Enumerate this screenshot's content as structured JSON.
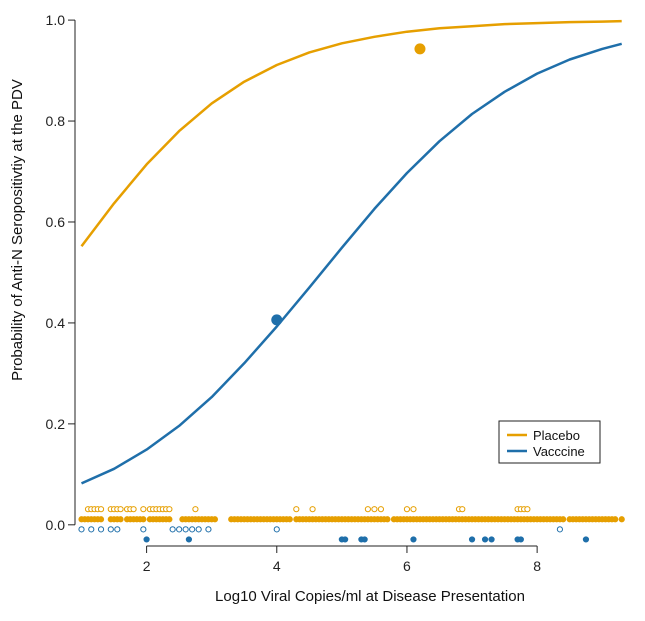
{
  "chart_data": {
    "type": "line",
    "title": "",
    "xlabel": "Log10 Viral Copies/ml at Disease Presentation",
    "ylabel": "Probability of Anti-N Seropositivtiy at the PDV",
    "xlim": [
      0.9,
      9.35
    ],
    "ylim": [
      -0.04,
      1.02
    ],
    "x_ticks": [
      2,
      4,
      6,
      8
    ],
    "y_ticks": [
      0.0,
      0.2,
      0.4,
      0.6,
      0.8,
      1.0
    ],
    "x_tick_labels": [
      "2",
      "4",
      "6",
      "8"
    ],
    "y_tick_labels": [
      "0.0",
      "0.2",
      "0.4",
      "0.6",
      "0.8",
      "1.0"
    ],
    "legend_position": "bottom-right",
    "grid": false,
    "series": [
      {
        "name": "Placebo",
        "color": "#E69F00",
        "kind": "logistic-curve",
        "x": [
          1.0,
          1.5,
          2.0,
          2.5,
          3.0,
          3.5,
          4.0,
          4.5,
          5.0,
          5.5,
          6.0,
          6.5,
          7.0,
          7.5,
          8.0,
          8.5,
          9.0,
          9.3
        ],
        "y": [
          0.552,
          0.637,
          0.714,
          0.78,
          0.835,
          0.878,
          0.911,
          0.936,
          0.954,
          0.967,
          0.977,
          0.984,
          0.988,
          0.992,
          0.994,
          0.996,
          0.997,
          0.998
        ],
        "marker": {
          "x": 6.2,
          "y": 0.943
        }
      },
      {
        "name": "Vacccine",
        "color": "#1F6FAA",
        "kind": "logistic-curve",
        "x": [
          1.0,
          1.5,
          2.0,
          2.5,
          3.0,
          3.5,
          4.0,
          4.5,
          5.0,
          5.5,
          6.0,
          6.5,
          7.0,
          7.5,
          8.0,
          8.5,
          9.0,
          9.3
        ],
        "y": [
          0.082,
          0.111,
          0.149,
          0.196,
          0.253,
          0.32,
          0.393,
          0.47,
          0.549,
          0.626,
          0.697,
          0.76,
          0.814,
          0.858,
          0.894,
          0.922,
          0.943,
          0.953
        ],
        "marker": {
          "x": 4.0,
          "y": 0.406
        }
      }
    ],
    "rug": {
      "placebo_open": {
        "y": 0.031,
        "x": [
          1.1,
          1.15,
          1.2,
          1.25,
          1.3,
          1.45,
          1.5,
          1.55,
          1.6,
          1.7,
          1.75,
          1.8,
          1.95,
          2.05,
          2.1,
          2.15,
          2.2,
          2.25,
          2.3,
          2.35,
          2.75,
          4.3,
          4.55,
          5.4,
          5.5,
          5.6,
          6.0,
          6.1,
          6.8,
          6.85,
          7.7,
          7.75,
          7.8,
          7.85
        ]
      },
      "placebo_filled": {
        "y": 0.011,
        "x": [
          1.0,
          1.05,
          1.1,
          1.15,
          1.2,
          1.25,
          1.3,
          1.45,
          1.5,
          1.55,
          1.6,
          1.7,
          1.75,
          1.8,
          1.85,
          1.9,
          1.95,
          2.05,
          2.1,
          2.15,
          2.2,
          2.25,
          2.3,
          2.35,
          2.55,
          2.6,
          2.65,
          2.7,
          2.75,
          2.8,
          2.85,
          2.9,
          2.95,
          3.0,
          3.05,
          3.3,
          3.35,
          3.4,
          3.45,
          3.5,
          3.55,
          3.6,
          3.65,
          3.7,
          3.75,
          3.8,
          3.85,
          3.9,
          3.95,
          4.0,
          4.05,
          4.1,
          4.15,
          4.2,
          4.3,
          4.35,
          4.4,
          4.45,
          4.5,
          4.55,
          4.6,
          4.65,
          4.7,
          4.75,
          4.8,
          4.85,
          4.9,
          4.95,
          5.0,
          5.05,
          5.1,
          5.15,
          5.2,
          5.25,
          5.3,
          5.35,
          5.4,
          5.45,
          5.5,
          5.55,
          5.6,
          5.65,
          5.7,
          5.8,
          5.85,
          5.9,
          5.95,
          6.0,
          6.05,
          6.1,
          6.15,
          6.2,
          6.25,
          6.3,
          6.35,
          6.4,
          6.45,
          6.5,
          6.55,
          6.6,
          6.65,
          6.7,
          6.75,
          6.8,
          6.85,
          6.9,
          6.95,
          7.0,
          7.05,
          7.1,
          7.15,
          7.2,
          7.25,
          7.3,
          7.35,
          7.4,
          7.45,
          7.5,
          7.55,
          7.6,
          7.65,
          7.7,
          7.75,
          7.8,
          7.85,
          7.9,
          7.95,
          8.0,
          8.05,
          8.1,
          8.15,
          8.2,
          8.25,
          8.3,
          8.35,
          8.4,
          8.5,
          8.55,
          8.6,
          8.65,
          8.7,
          8.75,
          8.8,
          8.85,
          8.9,
          8.95,
          9.0,
          9.05,
          9.1,
          9.15,
          9.2,
          9.3
        ]
      },
      "vaccine_open": {
        "y": -0.009,
        "x": [
          1.0,
          1.15,
          1.3,
          1.45,
          1.55,
          1.95,
          2.4,
          2.5,
          2.6,
          2.7,
          2.8,
          2.95,
          4.0,
          8.35
        ]
      },
      "vaccine_filled": {
        "y": -0.029,
        "x": [
          2.0,
          2.65,
          5.0,
          5.05,
          5.3,
          5.35,
          6.1,
          7.0,
          7.2,
          7.3,
          7.7,
          7.75,
          8.75
        ]
      }
    }
  }
}
